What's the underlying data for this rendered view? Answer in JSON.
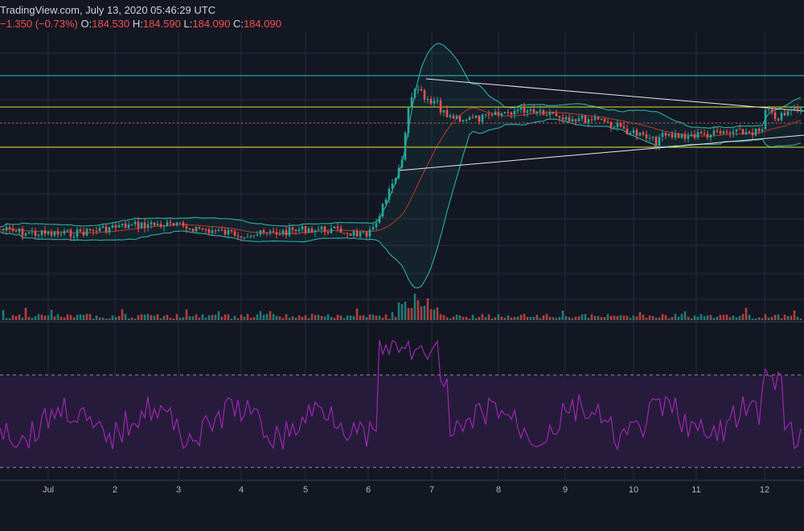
{
  "header": {
    "source": "TradingView.com, July 13, 2020 05:46:29 UTC",
    "change": "−1.350 (−0.73%)",
    "o_label": "O:",
    "o_value": "184.530",
    "h_label": "H:",
    "h_value": "184.590",
    "l_label": "L:",
    "l_value": "184.090",
    "c_label": "C:",
    "c_value": "184.090"
  },
  "colors": {
    "background": "#131722",
    "grid": "#262b3b",
    "up": "#26a69a",
    "down": "#ef5350",
    "bollinger": "#26a69a",
    "bb_basis": "#c0392b",
    "rsi": "#9c27b0",
    "rsi_band": "#2a1c3f",
    "support_resistance": "#e0e030",
    "top_line": "#2ec4c4",
    "trendline": "#e8e8e8",
    "current_price": "#e05050"
  },
  "chart_data": {
    "type": "candlestick",
    "x_tick_labels": [
      "Jul",
      "2",
      "3",
      "4",
      "5",
      "6",
      "7",
      "8",
      "9",
      "10",
      "11",
      "12"
    ],
    "grid": true,
    "indicators": [
      "Bollinger Bands",
      "Volume",
      "RSI"
    ],
    "rsi_bands": [
      30,
      70
    ],
    "last": {
      "open": 184.53,
      "high": 184.59,
      "low": 184.09,
      "close": 184.09,
      "change": -1.35,
      "change_pct": -0.73
    }
  }
}
